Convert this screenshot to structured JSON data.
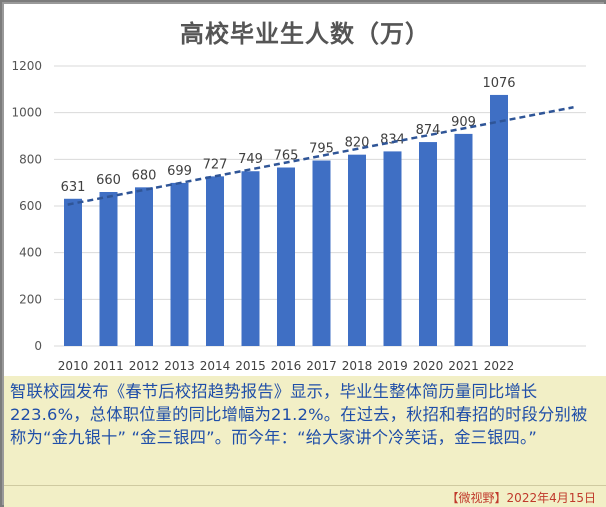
{
  "chart_data": {
    "type": "bar",
    "title": "高校毕业生人数（万）",
    "categories": [
      "2010",
      "2011",
      "2012",
      "2013",
      "2014",
      "2015",
      "2016",
      "2017",
      "2018",
      "2019",
      "2020",
      "2021",
      "2022"
    ],
    "values": [
      631,
      660,
      680,
      699,
      727,
      749,
      765,
      795,
      820,
      834,
      874,
      909,
      1076
    ],
    "ylim": [
      0,
      1200
    ],
    "yticks": [
      0,
      200,
      400,
      600,
      800,
      1000,
      1200
    ],
    "grid": true,
    "trendline": "linear, dashed",
    "bar_color": "#3f6fc4",
    "trend_color": "#2f5597"
  },
  "caption": {
    "text": "智联校园发布《春节后校招趋势报告》显示，毕业生整体简历量同比增长223.6%，总体职位量的同比增幅为21.2%。在过去，秋招和春招的时段分别被称为“金九银十” “金三银四”。而今年：“给大家讲个冷笑话，金三银四。”",
    "color": "#1f4ea8"
  },
  "source": {
    "text": "【微视野】2022年4月15日",
    "color": "#c0392b"
  }
}
